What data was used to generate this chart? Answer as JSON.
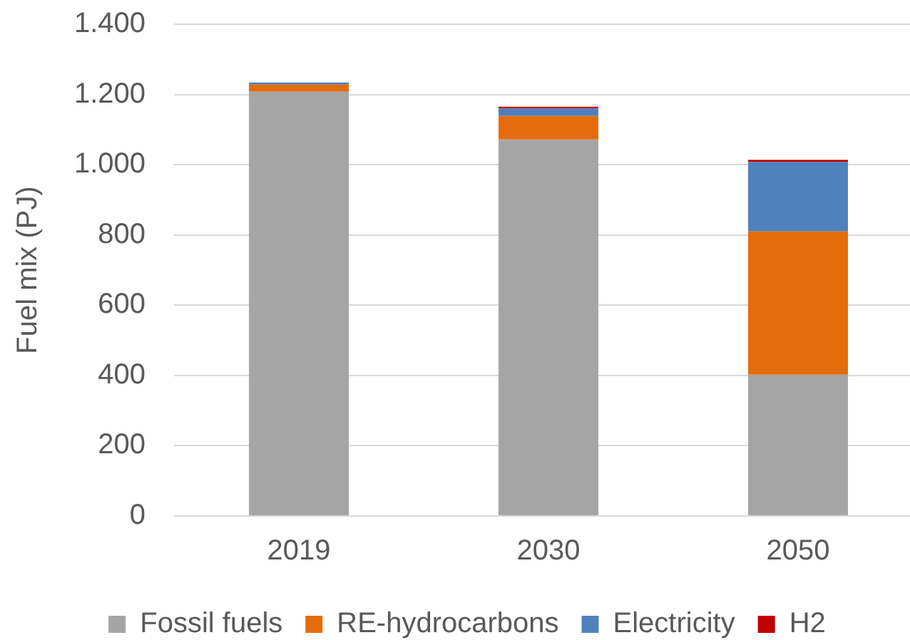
{
  "chart_data": {
    "type": "bar",
    "stacked": true,
    "ylabel": "Fuel mix (PJ)",
    "categories": [
      "2019",
      "2030",
      "2050"
    ],
    "series": [
      {
        "name": "Fossil fuels",
        "color": "#a5a5a5",
        "values": [
          1208,
          1072,
          402
        ]
      },
      {
        "name": "RE-hydrocarbons",
        "color": "#e46c0a",
        "values": [
          20,
          67,
          408
        ]
      },
      {
        "name": "Electricity",
        "color": "#4f81bd",
        "values": [
          6,
          21,
          198
        ]
      },
      {
        "name": "H2",
        "color": "#c00000",
        "values": [
          0,
          5,
          6
        ]
      }
    ],
    "ylim": [
      0,
      1400
    ],
    "yticks": [
      0,
      200,
      400,
      600,
      800,
      {
        "value": 1000,
        "label": "1.000"
      },
      {
        "value": 1200,
        "label": "1.200"
      },
      {
        "value": 1400,
        "label": "1.400"
      }
    ],
    "grid": "y",
    "legend": "bottom"
  }
}
